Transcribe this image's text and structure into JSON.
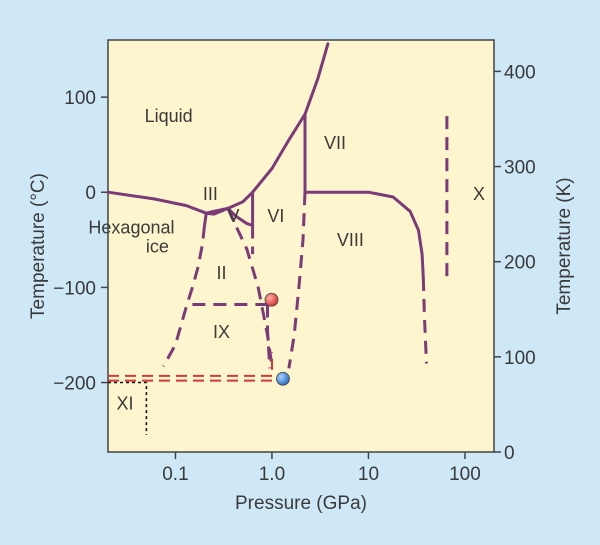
{
  "chart_data": {
    "type": "phase-diagram",
    "title": "",
    "xlabel": "Pressure (GPa)",
    "ylabel_left": "Temperature (°C)",
    "ylabel_right": "Temperature (K)",
    "x_scale": "log",
    "xlim": [
      0.02,
      200
    ],
    "ylim_celsius": [
      -273,
      160
    ],
    "x_ticks": [
      {
        "value": 0.1,
        "label": "0.1"
      },
      {
        "value": 1.0,
        "label": "1.0"
      },
      {
        "value": 10,
        "label": "10"
      },
      {
        "value": 100,
        "label": "100"
      }
    ],
    "y_ticks_left": [
      {
        "value": 100,
        "label": "100"
      },
      {
        "value": 0,
        "label": "0"
      },
      {
        "value": -100,
        "label": "−100"
      },
      {
        "value": -200,
        "label": "−200"
      }
    ],
    "y_ticks_right": [
      {
        "value": 400,
        "label": "400"
      },
      {
        "value": 300,
        "label": "300"
      },
      {
        "value": 200,
        "label": "200"
      },
      {
        "value": 100,
        "label": "100"
      },
      {
        "value": 0,
        "label": "0"
      }
    ],
    "grid": false,
    "colors": {
      "background": "#cfe8f7",
      "plot": "#fdf5cd",
      "curve": "#7b3a78",
      "red_dash": "#d23a3a",
      "red_point": "#d23a3a",
      "blue_point": "#2f6fc0"
    },
    "phase_labels": [
      {
        "label": "Liquid",
        "x": 0.085,
        "t": 80
      },
      {
        "label": "III",
        "x": 0.23,
        "t": -2
      },
      {
        "label": "V",
        "x": 0.4,
        "t": -25
      },
      {
        "label": "VI",
        "x": 1.1,
        "t": -25
      },
      {
        "label": "VII",
        "x": 4.5,
        "t": 52
      },
      {
        "label": "VIII",
        "x": 6.5,
        "t": -50
      },
      {
        "label": "X",
        "x": 140,
        "t": -2
      },
      {
        "label": "Hexagonal",
        "x": 0.035,
        "t": -37
      },
      {
        "label": "ice",
        "x": 0.065,
        "t": -57
      },
      {
        "label": "II",
        "x": 0.3,
        "t": -85
      },
      {
        "label": "IX",
        "x": 0.3,
        "t": -147
      },
      {
        "label": "XI",
        "x": 0.03,
        "t": -222
      }
    ],
    "solid_lines": [
      {
        "name": "ice-Ih melting",
        "points": [
          [
            0.02,
            0
          ],
          [
            0.06,
            -7
          ],
          [
            0.13,
            -14
          ],
          [
            0.209,
            -22
          ]
        ]
      },
      {
        "name": "III/V melting",
        "points": [
          [
            0.209,
            -22
          ],
          [
            0.25,
            -20
          ],
          [
            0.35,
            -17
          ]
        ]
      },
      {
        "name": "V/VI melting",
        "points": [
          [
            0.35,
            -17
          ],
          [
            0.5,
            -10
          ],
          [
            0.63,
            0
          ]
        ]
      },
      {
        "name": "VI melting",
        "points": [
          [
            0.63,
            0
          ],
          [
            1.0,
            25
          ],
          [
            1.5,
            55
          ],
          [
            2.2,
            82
          ]
        ]
      },
      {
        "name": "VII melting",
        "points": [
          [
            2.2,
            82
          ],
          [
            3,
            120
          ],
          [
            3.8,
            156
          ]
        ]
      },
      {
        "name": "Ih/III boundary",
        "points": [
          [
            0.209,
            -22
          ],
          [
            0.25,
            -23
          ],
          [
            0.35,
            -17
          ]
        ]
      },
      {
        "name": "III/V boundary",
        "points": [
          [
            0.35,
            -17
          ],
          [
            0.42,
            -25
          ],
          [
            0.55,
            -33
          ],
          [
            0.63,
            -35
          ]
        ]
      },
      {
        "name": "V/VI boundary",
        "points": [
          [
            0.63,
            0
          ],
          [
            0.63,
            -35
          ]
        ]
      },
      {
        "name": "VI/VII boundary",
        "points": [
          [
            2.2,
            82
          ],
          [
            2.2,
            0
          ]
        ]
      },
      {
        "name": "VII/VIII boundary",
        "points": [
          [
            2.2,
            0
          ],
          [
            5,
            0
          ],
          [
            10,
            0
          ],
          [
            18,
            -5
          ],
          [
            27,
            -20
          ],
          [
            33,
            -40
          ],
          [
            36,
            -65
          ],
          [
            37,
            -90
          ]
        ]
      }
    ],
    "dashed_lines": [
      {
        "name": "Ih/II",
        "points": [
          [
            0.2,
            -35
          ],
          [
            0.19,
            -55
          ],
          [
            0.17,
            -80
          ],
          [
            0.15,
            -100
          ],
          [
            0.13,
            -120
          ],
          [
            0.1,
            -160
          ],
          [
            0.075,
            -183
          ]
        ]
      },
      {
        "name": "III/II",
        "points": [
          [
            0.209,
            -22
          ],
          [
            0.2,
            -35
          ]
        ]
      },
      {
        "name": "II/V",
        "points": [
          [
            0.35,
            -17
          ],
          [
            0.4,
            -30
          ],
          [
            0.55,
            -60
          ],
          [
            0.72,
            -100
          ],
          [
            0.9,
            -150
          ],
          [
            1.0,
            -183
          ]
        ]
      },
      {
        "name": "V/VI lower",
        "points": [
          [
            0.63,
            -35
          ],
          [
            0.63,
            -65
          ]
        ]
      },
      {
        "name": "IX top",
        "points": [
          [
            0.15,
            -118
          ],
          [
            0.9,
            -118
          ]
        ]
      },
      {
        "name": "IX right",
        "points": [
          [
            0.9,
            -118
          ],
          [
            0.9,
            -145
          ],
          [
            0.95,
            -185
          ]
        ]
      },
      {
        "name": "VI/VIII lower",
        "points": [
          [
            2.2,
            0
          ],
          [
            2.1,
            -50
          ],
          [
            1.9,
            -100
          ],
          [
            1.7,
            -150
          ],
          [
            1.5,
            -185
          ]
        ]
      },
      {
        "name": "VII/VIII lower",
        "points": [
          [
            37,
            -90
          ],
          [
            38,
            -130
          ],
          [
            40,
            -180
          ]
        ]
      },
      {
        "name": "VII/X",
        "points": [
          [
            65,
            80
          ],
          [
            65,
            -92
          ]
        ]
      }
    ],
    "red_dashed_lines": [
      {
        "points": [
          [
            0.02,
            -193
          ],
          [
            1.0,
            -193
          ],
          [
            1.0,
            -168
          ]
        ]
      },
      {
        "points": [
          [
            0.02,
            -198
          ],
          [
            1.3,
            -198
          ]
        ]
      }
    ],
    "black_dotted_lines": [
      {
        "points": [
          [
            0.02,
            -200
          ],
          [
            0.05,
            -200
          ],
          [
            0.05,
            -255
          ]
        ]
      }
    ],
    "points": [
      {
        "name": "red",
        "x": 0.99,
        "t": -113
      },
      {
        "name": "blue",
        "x": 1.3,
        "t": -196
      }
    ]
  }
}
